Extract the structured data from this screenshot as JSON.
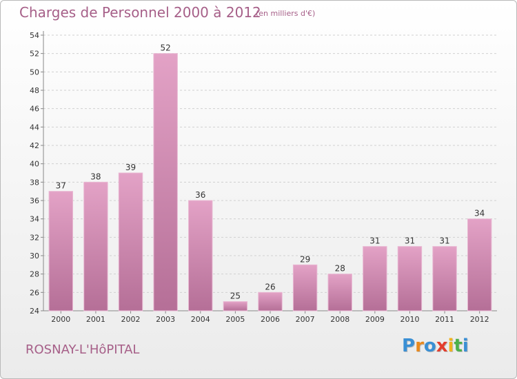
{
  "title": "Charges de Personnel 2000 à 2012",
  "subtitle": "(en milliers d'€)",
  "place": "ROSNAY-L'HôPITAL",
  "logo": {
    "letters": [
      "P",
      "r",
      "o",
      "x",
      "i",
      "t",
      "i"
    ],
    "colors": [
      "#3a8fd4",
      "#e8891e",
      "#3a8fd4",
      "#e33d2d",
      "#f0b21e",
      "#4bb04b",
      "#3a8fd4"
    ]
  },
  "colors": {
    "bar": "#d98cb6",
    "bar_dark": "#b76f98",
    "text_accent": "#a65f88"
  },
  "chart_data": {
    "type": "bar",
    "categories": [
      "2000",
      "2001",
      "2002",
      "2003",
      "2004",
      "2005",
      "2006",
      "2007",
      "2008",
      "2009",
      "2010",
      "2011",
      "2012"
    ],
    "values": [
      37,
      38,
      39,
      52,
      36,
      25,
      26,
      29,
      28,
      31,
      31,
      31,
      34
    ],
    "yticks": [
      24,
      26,
      28,
      30,
      32,
      34,
      36,
      38,
      40,
      42,
      44,
      46,
      48,
      50,
      52,
      54
    ],
    "ylim": [
      24,
      54
    ],
    "grid": true,
    "xlabel": "",
    "ylabel": ""
  }
}
